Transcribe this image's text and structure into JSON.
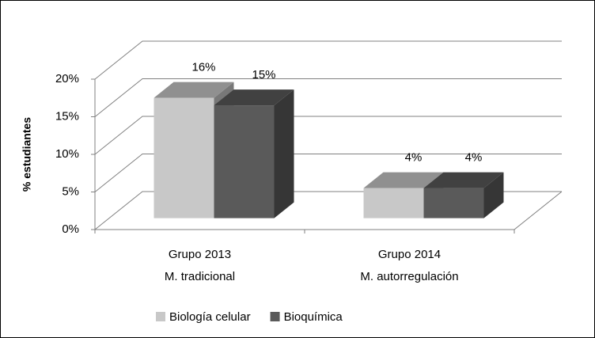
{
  "chart_data": {
    "type": "bar3d",
    "y_label": "% estudiantes",
    "categories": [
      [
        "Grupo 2013",
        "M. tradicional"
      ],
      [
        "Grupo 2014",
        "M. autorregulación"
      ]
    ],
    "series": [
      {
        "name": "Biología celular",
        "color": "#c8c8c8",
        "values": [
          16,
          4
        ],
        "value_labels": [
          "16%",
          "4%"
        ]
      },
      {
        "name": "Bioquímica",
        "color": "#5a5a5a",
        "values": [
          15,
          4
        ],
        "value_labels": [
          "15%",
          "4%"
        ]
      }
    ],
    "ylim": [
      0,
      20
    ],
    "yticks": [
      {
        "value": 0,
        "label": "0%"
      },
      {
        "value": 5,
        "label": "5%"
      },
      {
        "value": 10,
        "label": "10%"
      },
      {
        "value": 15,
        "label": "15%"
      },
      {
        "value": 20,
        "label": "20%"
      }
    ],
    "grid": true,
    "legend": "bottom"
  }
}
